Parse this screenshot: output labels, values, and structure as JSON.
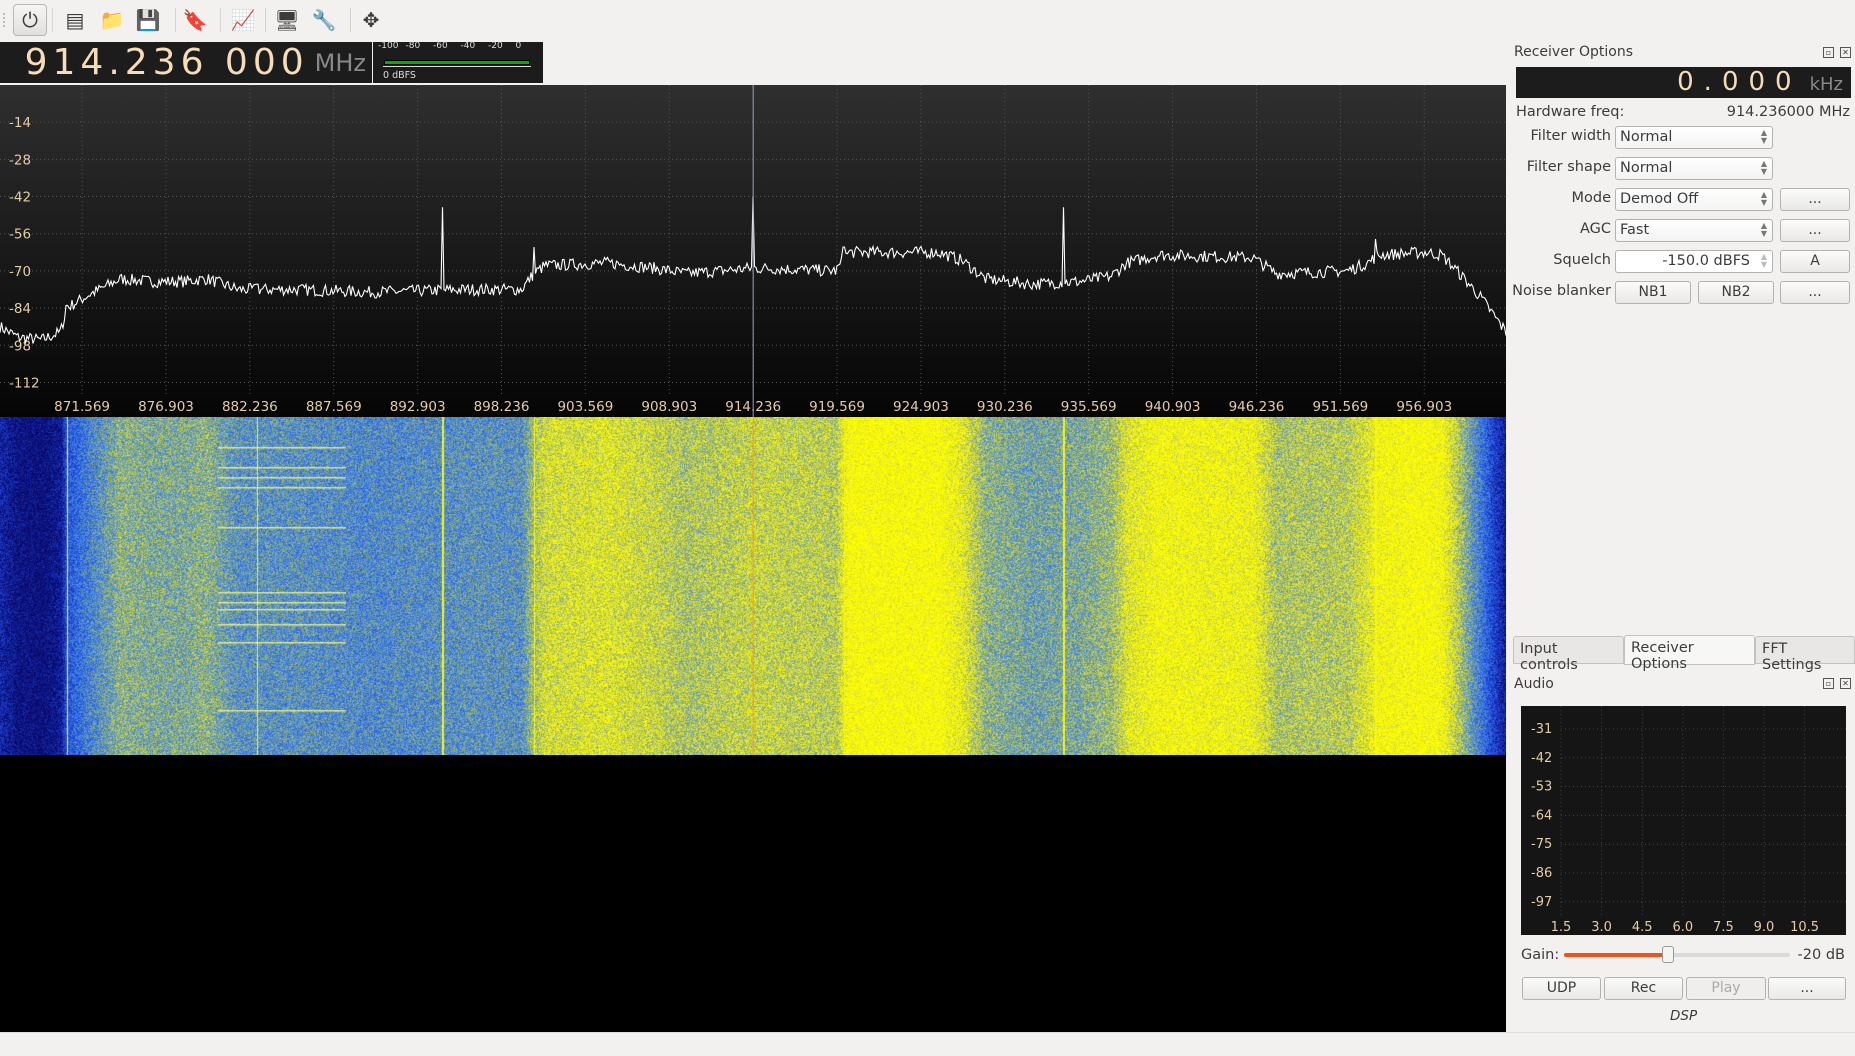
{
  "toolbar": {
    "items": [
      {
        "name": "power-icon",
        "glyph": "⏻"
      },
      {
        "name": "hardware-device-icon",
        "glyph": "▤"
      },
      {
        "name": "open-folder-icon",
        "glyph": "📁"
      },
      {
        "name": "save-icon",
        "glyph": "💾"
      },
      {
        "name": "bookmark-icon",
        "glyph": "🔖"
      },
      {
        "name": "fft-monitor-icon",
        "glyph": "📈"
      },
      {
        "name": "network-remote-icon",
        "glyph": "🖥"
      },
      {
        "name": "settings-tools-icon",
        "glyph": "🔧"
      },
      {
        "name": "fit-view-icon",
        "glyph": "✥"
      }
    ]
  },
  "frequency": {
    "value": "914.236 000",
    "unit": "MHz"
  },
  "meter": {
    "ticks": [
      "-100",
      "-80",
      "-60",
      "-40",
      "-20",
      "0"
    ],
    "readout": "0 dBFS",
    "level_fraction": 1.0,
    "color": "#00b000"
  },
  "chart_data": {
    "type": "line",
    "title": "",
    "xlabel": "",
    "ylabel": "",
    "x_unit": "MHz",
    "y_unit": "dB",
    "xlim": [
      866.35,
      962.1
    ],
    "ylim": [
      -125,
      0
    ],
    "grid": true,
    "center_frequency": 914.236,
    "x_ticks": [
      "871.569",
      "876.903",
      "882.236",
      "887.569",
      "892.903",
      "898.236",
      "903.569",
      "908.903",
      "914.236",
      "919.569",
      "924.903",
      "930.236",
      "935.569",
      "940.903",
      "946.236",
      "951.569",
      "956.903"
    ],
    "y_ticks": [
      "-14",
      "-28",
      "-42",
      "-56",
      "-70",
      "-84",
      "-98",
      "-112"
    ],
    "envelope": [
      [
        866.35,
        -91
      ],
      [
        867.5,
        -95
      ],
      [
        869,
        -96
      ],
      [
        870.2,
        -93
      ],
      [
        870.6,
        -84
      ],
      [
        872,
        -79
      ],
      [
        874,
        -73
      ],
      [
        876,
        -74
      ],
      [
        878,
        -74
      ],
      [
        879.5,
        -73
      ],
      [
        881.5,
        -77
      ],
      [
        885,
        -77
      ],
      [
        890,
        -78
      ],
      [
        896,
        -77
      ],
      [
        899.5,
        -77
      ],
      [
        900.3,
        -71
      ],
      [
        901,
        -68
      ],
      [
        905,
        -67
      ],
      [
        908,
        -69
      ],
      [
        910,
        -71
      ],
      [
        914,
        -69
      ],
      [
        915,
        -69
      ],
      [
        919.5,
        -70
      ],
      [
        920.3,
        -63
      ],
      [
        921.5,
        -63
      ],
      [
        926,
        -63
      ],
      [
        927.5,
        -66
      ],
      [
        929,
        -73
      ],
      [
        932,
        -75
      ],
      [
        935,
        -74
      ],
      [
        937,
        -72
      ],
      [
        938,
        -67
      ],
      [
        940,
        -64
      ],
      [
        946,
        -65
      ],
      [
        947.5,
        -71
      ],
      [
        952,
        -70
      ],
      [
        953.3,
        -67
      ],
      [
        954,
        -64
      ],
      [
        957,
        -63
      ],
      [
        958,
        -64
      ],
      [
        959,
        -70
      ],
      [
        960.5,
        -80
      ],
      [
        962.1,
        -93
      ]
    ],
    "spikes": [
      [
        894.5,
        -46
      ],
      [
        900.3,
        -61
      ],
      [
        914.236,
        -42
      ],
      [
        920.0,
        -61
      ],
      [
        933.97,
        -46
      ],
      [
        953.8,
        -58
      ],
      [
        870.6,
        -83
      ],
      [
        882.7,
        -75
      ]
    ]
  },
  "receiver": {
    "title": "Receiver Options",
    "offset": "0.000",
    "offset_unit": "kHz",
    "hw_label": "Hardware freq:",
    "hw_value": "914.236000 MHz",
    "filter_width_label": "Filter width",
    "filter_width": "Normal",
    "filter_shape_label": "Filter shape",
    "filter_shape": "Normal",
    "mode_label": "Mode",
    "mode": "Demod Off",
    "agc_label": "AGC",
    "agc": "Fast",
    "squelch_label": "Squelch",
    "squelch": "-150.0 dBFS",
    "squelch_auto": "A",
    "nb_label": "Noise blanker",
    "nb1": "NB1",
    "nb2": "NB2",
    "more": "..."
  },
  "tabs": [
    {
      "label": "Input controls"
    },
    {
      "label": "Receiver Options",
      "active": true
    },
    {
      "label": "FFT Settings"
    }
  ],
  "audio": {
    "title": "Audio",
    "y_ticks": [
      "-31",
      "-42",
      "-53",
      "-64",
      "-75",
      "-86",
      "-97"
    ],
    "x_ticks": [
      "1.5",
      "3.0",
      "4.5",
      "6.0",
      "7.5",
      "9.0",
      "10.5"
    ],
    "gain_label": "Gain:",
    "gain_value": "-20 dB",
    "gain_fraction": 0.46,
    "udp": "UDP",
    "rec": "Rec",
    "play": "Play",
    "more": "...",
    "dsp": "DSP"
  }
}
